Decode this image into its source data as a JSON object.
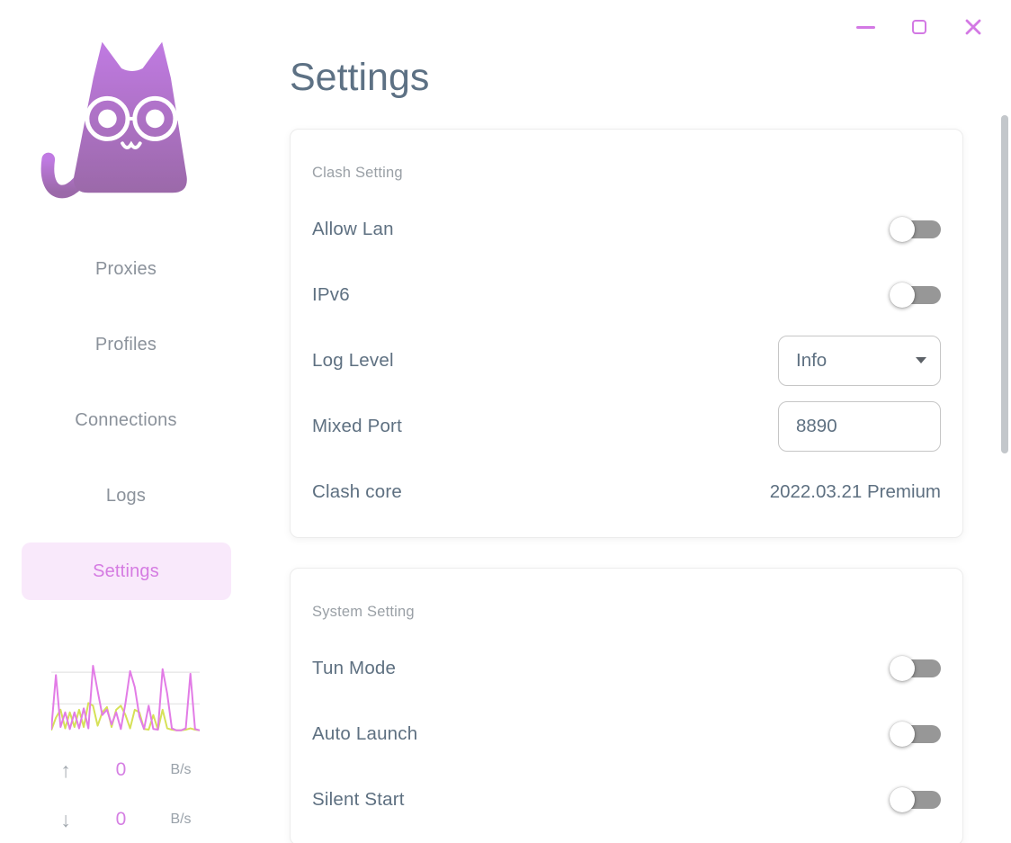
{
  "window": {
    "accent_color": "#d379e4",
    "controls": {
      "minimize": "minimize",
      "maximize": "maximize",
      "close": "close"
    }
  },
  "sidebar": {
    "logo": "clash-cat-with-glasses",
    "nav": [
      {
        "label": "Proxies",
        "active": false
      },
      {
        "label": "Profiles",
        "active": false
      },
      {
        "label": "Connections",
        "active": false
      },
      {
        "label": "Logs",
        "active": false
      },
      {
        "label": "Settings",
        "active": true
      }
    ],
    "traffic_stats": {
      "upload": {
        "arrow": "↑",
        "value": "0",
        "unit": "B/s"
      },
      "download": {
        "arrow": "↓",
        "value": "0",
        "unit": "B/s"
      }
    }
  },
  "main": {
    "title": "Settings",
    "cards": [
      {
        "header": "Clash Setting",
        "rows": [
          {
            "label": "Allow Lan",
            "control": "switch",
            "on": false
          },
          {
            "label": "IPv6",
            "control": "switch",
            "on": false
          },
          {
            "label": "Log Level",
            "control": "select",
            "value": "Info"
          },
          {
            "label": "Mixed Port",
            "control": "input",
            "value": "8890"
          },
          {
            "label": "Clash core",
            "control": "text",
            "value": "2022.03.21 Premium"
          }
        ]
      },
      {
        "header": "System Setting",
        "rows": [
          {
            "label": "Tun Mode",
            "control": "switch",
            "on": false
          },
          {
            "label": "Auto Launch",
            "control": "switch",
            "on": false
          },
          {
            "label": "Silent Start",
            "control": "switch",
            "on": false
          }
        ]
      }
    ]
  },
  "chart_data": {
    "type": "line",
    "title": "traffic-sparkline",
    "xlabel": "",
    "ylabel": "",
    "ylim": [
      0,
      100
    ],
    "grid": true,
    "gridlines_y_pct": [
      14,
      58
    ],
    "legend": "none",
    "note": "unlabeled relative traffic values (percent of peak)",
    "series": [
      {
        "name": "up",
        "color": "#d6e157",
        "values": [
          3,
          22,
          34,
          6,
          30,
          8,
          34,
          8,
          44,
          40,
          10,
          30,
          38,
          8,
          34,
          40,
          26,
          6,
          34,
          30,
          5,
          4,
          26,
          4,
          34,
          6,
          4,
          3,
          3,
          4,
          6,
          4,
          3
        ]
      },
      {
        "name": "down",
        "color": "#e27ce6",
        "values": [
          4,
          86,
          8,
          30,
          5,
          30,
          6,
          36,
          6,
          100,
          62,
          26,
          34,
          12,
          30,
          5,
          44,
          92,
          68,
          24,
          5,
          40,
          5,
          4,
          95,
          58,
          6,
          3,
          3,
          6,
          88,
          5,
          3
        ]
      }
    ]
  },
  "colors": {
    "slate_text": "#5e7081",
    "secondary_text": "#9aa0a6",
    "nav_text": "#8b929b",
    "accent_purple": "#d57be2",
    "active_nav_bg": "#f9e9fb",
    "switch_track": "#979797",
    "chart_grid": "#e7e7e7",
    "scrollbar": "#c3c7cb"
  },
  "icons": {
    "minimize": "–",
    "maximize": "□",
    "close": "✕",
    "upload": "↑",
    "download": "↓",
    "select_caret": "▼"
  }
}
